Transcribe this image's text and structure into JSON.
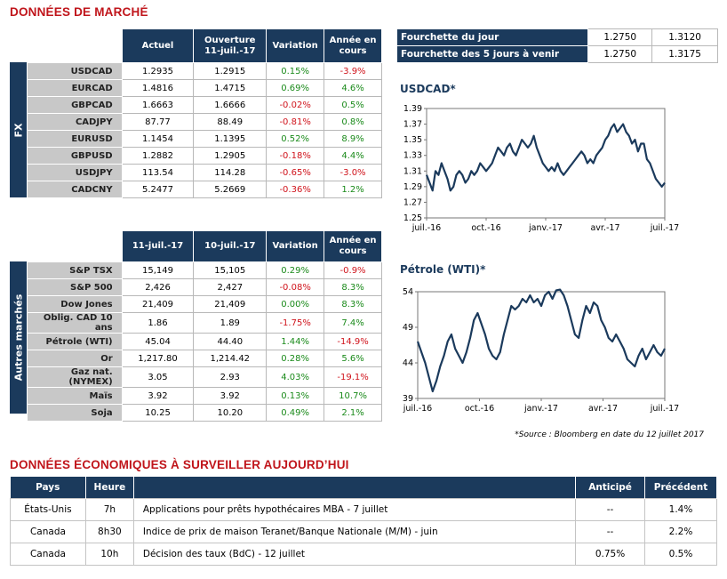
{
  "market": {
    "title": "DONNÉES DE MARCHÉ",
    "fx": {
      "side_label": "FX",
      "headers": [
        "Actuel",
        "Ouverture 11-juil.-17",
        "Variation",
        "Année en cours"
      ],
      "rows": [
        {
          "name": "USDCAD",
          "c1": "1.2935",
          "c2": "1.2915",
          "c3": "0.15%",
          "c4": "-3.9%"
        },
        {
          "name": "EURCAD",
          "c1": "1.4816",
          "c2": "1.4715",
          "c3": "0.69%",
          "c4": "4.6%"
        },
        {
          "name": "GBPCAD",
          "c1": "1.6663",
          "c2": "1.6666",
          "c3": "-0.02%",
          "c4": "0.5%"
        },
        {
          "name": "CADJPY",
          "c1": "87.77",
          "c2": "88.49",
          "c3": "-0.81%",
          "c4": "0.8%"
        },
        {
          "name": "EURUSD",
          "c1": "1.1454",
          "c2": "1.1395",
          "c3": "0.52%",
          "c4": "8.9%"
        },
        {
          "name": "GBPUSD",
          "c1": "1.2882",
          "c2": "1.2905",
          "c3": "-0.18%",
          "c4": "4.4%"
        },
        {
          "name": "USDJPY",
          "c1": "113.54",
          "c2": "114.28",
          "c3": "-0.65%",
          "c4": "-3.0%"
        },
        {
          "name": "CADCNY",
          "c1": "5.2477",
          "c2": "5.2669",
          "c3": "-0.36%",
          "c4": "1.2%"
        }
      ]
    },
    "other": {
      "side_label": "Autres marchés",
      "headers": [
        "11-juil.-17",
        "10-juil.-17",
        "Variation",
        "Année en cours"
      ],
      "rows": [
        {
          "name": "S&P TSX",
          "c1": "15,149",
          "c2": "15,105",
          "c3": "0.29%",
          "c4": "-0.9%"
        },
        {
          "name": "S&P 500",
          "c1": "2,426",
          "c2": "2,427",
          "c3": "-0.08%",
          "c4": "8.3%"
        },
        {
          "name": "Dow Jones",
          "c1": "21,409",
          "c2": "21,409",
          "c3": "0.00%",
          "c4": "8.3%"
        },
        {
          "name": "Oblig. CAD 10 ans",
          "c1": "1.86",
          "c2": "1.89",
          "c3": "-1.75%",
          "c4": "7.4%"
        },
        {
          "name": "Pétrole (WTI)",
          "c1": "45.04",
          "c2": "44.40",
          "c3": "1.44%",
          "c4": "-14.9%"
        },
        {
          "name": "Or",
          "c1": "1,217.80",
          "c2": "1,214.42",
          "c3": "0.28%",
          "c4": "5.6%"
        },
        {
          "name": "Gaz nat. (NYMEX)",
          "c1": "3.05",
          "c2": "2.93",
          "c3": "4.03%",
          "c4": "-19.1%"
        },
        {
          "name": "Maïs",
          "c1": "3.92",
          "c2": "3.92",
          "c3": "0.13%",
          "c4": "10.7%"
        },
        {
          "name": "Soja",
          "c1": "10.25",
          "c2": "10.20",
          "c3": "0.49%",
          "c4": "2.1%"
        }
      ]
    },
    "ranges": [
      {
        "label": "Fourchette du jour",
        "low": "1.2750",
        "high": "1.3120"
      },
      {
        "label": "Fourchette des 5 jours à venir",
        "low": "1.2750",
        "high": "1.3175"
      }
    ],
    "source": "*Source : Bloomberg en date du  12 juillet 2017"
  },
  "colors": {
    "navy": "#1b3a5c",
    "red": "#c0151b",
    "green": "#1a8a1a",
    "line": "#1b3a5c"
  },
  "chart_data": [
    {
      "type": "line",
      "title": "USDCAD*",
      "xlabel": "",
      "ylabel": "",
      "x_ticks": [
        "juil.-16",
        "oct.-16",
        "janv.-17",
        "avr.-17",
        "juil.-17"
      ],
      "y_ticks": [
        "1.39",
        "1.37",
        "1.35",
        "1.33",
        "1.31",
        "1.29",
        "1.27",
        "1.25"
      ],
      "ylim": [
        1.25,
        1.39
      ],
      "grid": false,
      "series": [
        {
          "values": [
            1.305,
            1.295,
            1.285,
            1.31,
            1.305,
            1.32,
            1.31,
            1.3,
            1.285,
            1.29,
            1.305,
            1.31,
            1.305,
            1.295,
            1.3,
            1.31,
            1.305,
            1.31,
            1.32,
            1.315,
            1.31,
            1.315,
            1.32,
            1.33,
            1.34,
            1.335,
            1.33,
            1.34,
            1.345,
            1.335,
            1.33,
            1.34,
            1.35,
            1.345,
            1.34,
            1.345,
            1.355,
            1.34,
            1.33,
            1.32,
            1.315,
            1.31,
            1.315,
            1.31,
            1.32,
            1.31,
            1.305,
            1.31,
            1.315,
            1.32,
            1.325,
            1.33,
            1.335,
            1.33,
            1.32,
            1.325,
            1.32,
            1.33,
            1.335,
            1.34,
            1.35,
            1.355,
            1.365,
            1.37,
            1.36,
            1.365,
            1.37,
            1.36,
            1.355,
            1.345,
            1.35,
            1.335,
            1.345,
            1.345,
            1.325,
            1.32,
            1.31,
            1.3,
            1.295,
            1.29,
            1.295
          ]
        }
      ]
    },
    {
      "type": "line",
      "title": "Pétrole (WTI)*",
      "xlabel": "",
      "ylabel": "",
      "x_ticks": [
        "juil.-16",
        "oct.-16",
        "janv.-17",
        "avr.-17",
        "juil.-17"
      ],
      "y_ticks": [
        "54",
        "49",
        "44",
        "39"
      ],
      "ylim": [
        39,
        54
      ],
      "grid": false,
      "series": [
        {
          "values": [
            47,
            45.5,
            44,
            42,
            40,
            41.5,
            43.5,
            45,
            47,
            48,
            46,
            45,
            44,
            45.5,
            47.5,
            50,
            51,
            49.5,
            48,
            46,
            45,
            44.5,
            45.5,
            48,
            50,
            52,
            51.5,
            52,
            53,
            52.5,
            53.5,
            52.5,
            53,
            52,
            53.5,
            54,
            53,
            54.2,
            54.3,
            53.5,
            52,
            50,
            48,
            47.5,
            50,
            52,
            51,
            52.5,
            52,
            50,
            49,
            47.5,
            47,
            48,
            47,
            46,
            44.5,
            44,
            43.5,
            45,
            46,
            44.5,
            45.5,
            46.5,
            45.5,
            45,
            46
          ]
        }
      ]
    }
  ],
  "eco": {
    "title": "DONNÉES ÉCONOMIQUES À SURVEILLER AUJOURD’HUI",
    "headers": {
      "pays": "Pays",
      "heure": "Heure",
      "desc": "",
      "anticipe": "Anticipé",
      "precedent": "Précédent"
    },
    "rows": [
      {
        "pays": "États-Unis",
        "heure": "7h",
        "desc": "Applications pour prêts hypothécaires MBA - 7 juillet",
        "anticipe": "--",
        "precedent": "1.4%"
      },
      {
        "pays": "Canada",
        "heure": "8h30",
        "desc": "Indice de prix de maison Teranet/Banque Nationale (M/M) - juin",
        "anticipe": "--",
        "precedent": "2.2%"
      },
      {
        "pays": "Canada",
        "heure": "10h",
        "desc": "Décision des taux (BdC) - 12 juillet",
        "anticipe": "0.75%",
        "precedent": "0.5%"
      }
    ]
  }
}
